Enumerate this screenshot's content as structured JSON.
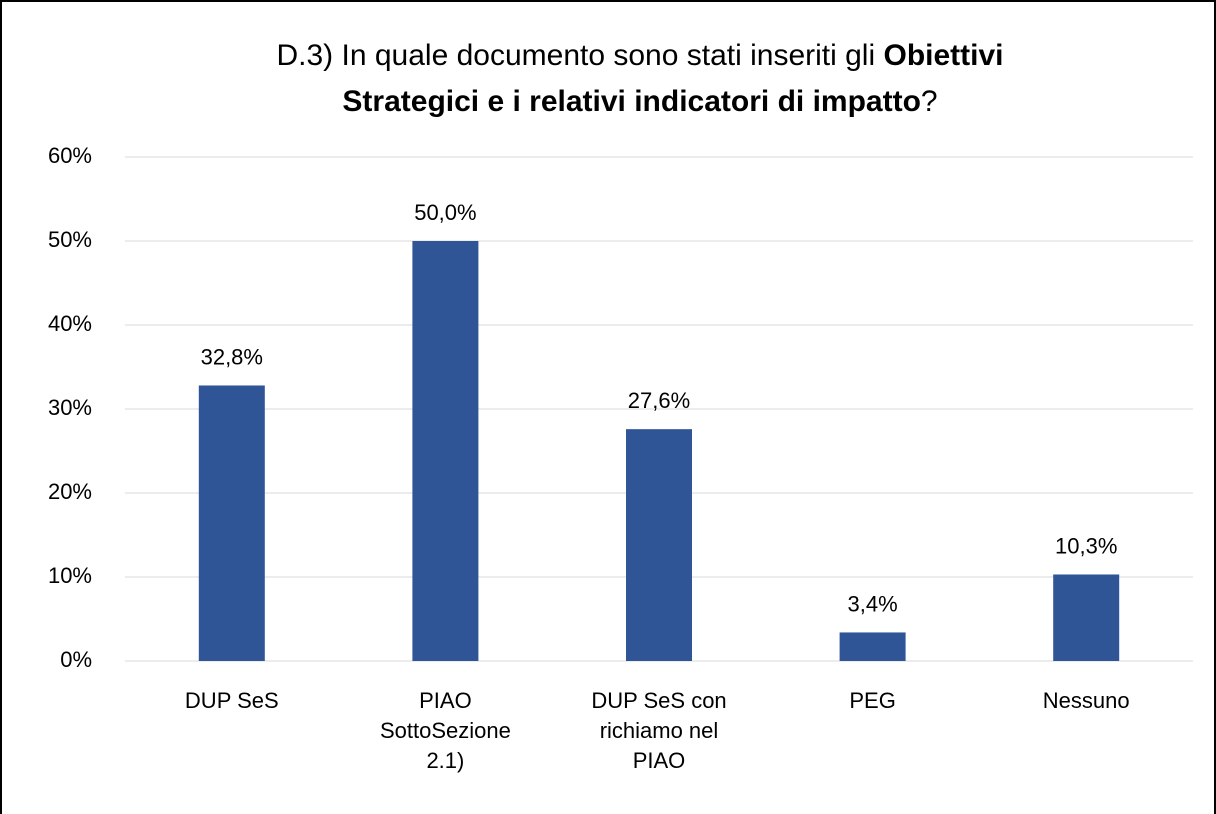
{
  "chart_data": {
    "type": "bar",
    "title": [
      [
        {
          "text": "D.3) In quale documento sono stati inseriti gli ",
          "bold": false
        },
        {
          "text": "Obiettivi",
          "bold": true
        }
      ],
      [
        {
          "text": "Strategici e i relativi indicatori di impatto",
          "bold": true
        },
        {
          "text": "?",
          "bold": false
        }
      ]
    ],
    "categories": [
      "DUP SeS",
      "PIAO SottoSezione 2.1)",
      "DUP SeS con richiamo nel PIAO",
      "PEG",
      "Nessuno"
    ],
    "values": [
      32.8,
      50,
      27.6,
      3.4,
      10.3
    ],
    "value_labels": [
      "32,8%",
      "50,0%",
      "27,6%",
      "3,4%",
      "10,3%"
    ],
    "color": "#2f5597",
    "ylim": [
      0,
      60
    ],
    "yticks": [
      {
        "value": 0,
        "label": "0%"
      },
      {
        "value": 10,
        "label": "10%"
      },
      {
        "value": 20,
        "label": "20%"
      },
      {
        "value": 30,
        "label": "30%"
      },
      {
        "value": 40,
        "label": "40%"
      },
      {
        "value": 50,
        "label": "50%"
      },
      {
        "value": 60,
        "label": "60%"
      }
    ],
    "grid": true
  }
}
